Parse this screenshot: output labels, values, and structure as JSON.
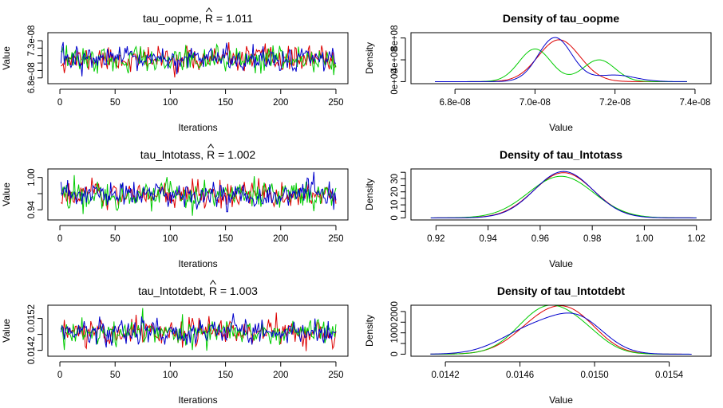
{
  "colors": {
    "red": "#dd0000",
    "green": "#00cc00",
    "blue": "#0000cc"
  },
  "chart_data": [
    {
      "type": "line",
      "title": "tau_oopme, ",
      "rhat_symbol": "R",
      "rhat_value": "1.011",
      "xlabel": "Iterations",
      "ylabel": "Value",
      "xlim": [
        0,
        250
      ],
      "ylim": [
        6.75e-08,
        7.38e-08
      ],
      "xticks": [
        0,
        50,
        100,
        150,
        200,
        250
      ],
      "xticklabels": [
        "0",
        "50",
        "100",
        "150",
        "200",
        "250"
      ],
      "yticks": [
        6.8e-08,
        6.9e-08,
        7e-08,
        7.1e-08,
        7.2e-08,
        7.3e-08
      ],
      "yticklabels": [
        "6.8e-08",
        "",
        "",
        "",
        "",
        "7.3e-08"
      ],
      "trace": {
        "center": 7.05e-08,
        "sd": 8e-10,
        "n": 250
      },
      "series": [
        {
          "color": "#dd0000",
          "seed": 11
        },
        {
          "color": "#00cc00",
          "seed": 12
        },
        {
          "color": "#0000cc",
          "seed": 13
        }
      ]
    },
    {
      "type": "line",
      "title": "Density of tau_oopme",
      "xlabel": "Value",
      "ylabel": "Density",
      "xlim": [
        6.72e-08,
        7.41e-08
      ],
      "ylim": [
        0,
        860000000.0
      ],
      "xticks": [
        6.8e-08,
        7e-08,
        7.2e-08,
        7.4e-08
      ],
      "xticklabels": [
        "6.8e-08",
        "7.0e-08",
        "7.2e-08",
        "7.4e-08"
      ],
      "yticks": [
        0,
        400000000.0,
        800000000.0
      ],
      "yticklabels": [
        "0e+00",
        "4e+08",
        "8e+08"
      ],
      "x_range": [
        6.75e-08,
        7.38e-08
      ],
      "series": [
        {
          "color": "#dd0000",
          "components": [
            [
              1,
              7.06e-08,
              5.2e-10
            ]
          ]
        },
        {
          "color": "#00cc00",
          "components": [
            [
              0.6,
              7e-08,
              4e-10
            ],
            [
              0.4,
              7.16e-08,
              4e-10
            ]
          ]
        },
        {
          "color": "#0000cc",
          "components": [
            [
              0.85,
              7.05e-08,
              4.2e-10
            ],
            [
              0.15,
              7.2e-08,
              5e-10
            ]
          ]
        }
      ]
    },
    {
      "type": "line",
      "title": "tau_lntotass, ",
      "rhat_symbol": "R",
      "rhat_value": "1.002",
      "xlabel": "Iterations",
      "ylabel": "Value",
      "xlim": [
        0,
        250
      ],
      "ylim": [
        0.925,
        1.012
      ],
      "xticks": [
        0,
        50,
        100,
        150,
        200,
        250
      ],
      "xticklabels": [
        "0",
        "50",
        "100",
        "150",
        "200",
        "250"
      ],
      "yticks": [
        0.94,
        0.97,
        1.0
      ],
      "yticklabels": [
        "0.94",
        "",
        "1.00"
      ],
      "trace": {
        "center": 0.968,
        "sd": 0.012,
        "n": 250
      },
      "series": [
        {
          "color": "#dd0000",
          "seed": 21
        },
        {
          "color": "#00cc00",
          "seed": 22
        },
        {
          "color": "#0000cc",
          "seed": 23
        }
      ]
    },
    {
      "type": "line",
      "title": "Density of tau_lntotass",
      "xlabel": "Value",
      "ylabel": "Density",
      "xlim": [
        0.915,
        1.021
      ],
      "ylim": [
        0,
        36
      ],
      "xticks": [
        0.92,
        0.94,
        0.96,
        0.98,
        1.0,
        1.02
      ],
      "xticklabels": [
        "0.92",
        "0.94",
        "0.96",
        "0.98",
        "1.00",
        "1.02"
      ],
      "yticks": [
        0,
        5,
        10,
        15,
        20,
        25,
        30,
        35
      ],
      "yticklabels": [
        "0",
        "",
        "10",
        "",
        "20",
        "",
        "30",
        ""
      ],
      "x_range": [
        0.918,
        1.02
      ],
      "series": [
        {
          "color": "#dd0000",
          "components": [
            [
              1,
              0.969,
              0.0115
            ]
          ]
        },
        {
          "color": "#00cc00",
          "components": [
            [
              1,
              0.968,
              0.0125
            ]
          ]
        },
        {
          "color": "#0000cc",
          "components": [
            [
              1,
              0.969,
              0.0112
            ]
          ]
        }
      ]
    },
    {
      "type": "line",
      "title": "tau_lntotdebt, ",
      "rhat_symbol": "R",
      "rhat_value": "1.003",
      "xlabel": "Iterations",
      "ylabel": "Value",
      "xlim": [
        0,
        250
      ],
      "ylim": [
        0.01408,
        0.01555
      ],
      "xticks": [
        0,
        50,
        100,
        150,
        200,
        250
      ],
      "xticklabels": [
        "0",
        "50",
        "100",
        "150",
        "200",
        "250"
      ],
      "yticks": [
        0.0142,
        0.0147,
        0.0152
      ],
      "yticklabels": [
        "0.0142",
        "",
        "0.0152"
      ],
      "trace": {
        "center": 0.01478,
        "sd": 0.00019,
        "n": 250
      },
      "series": [
        {
          "color": "#dd0000",
          "seed": 31
        },
        {
          "color": "#00cc00",
          "seed": 32
        },
        {
          "color": "#0000cc",
          "seed": 33
        }
      ]
    },
    {
      "type": "line",
      "title": "Density of tau_lntotdebt",
      "xlabel": "Value",
      "ylabel": "Density",
      "xlim": [
        0.01408,
        0.01556
      ],
      "ylim": [
        0,
        2200
      ],
      "xticks": [
        0.0142,
        0.0146,
        0.015,
        0.0154
      ],
      "xticklabels": [
        "0.0142",
        "0.0146",
        "0.0150",
        "0.0154"
      ],
      "yticks": [
        0,
        500,
        1000,
        1500,
        2000
      ],
      "yticklabels": [
        "0",
        "",
        "1000",
        "",
        "2000"
      ],
      "x_range": [
        0.01412,
        0.01552
      ],
      "series": [
        {
          "color": "#dd0000",
          "components": [
            [
              0.7,
              0.01475,
              0.00016
            ],
            [
              0.3,
              0.01492,
              0.00013
            ]
          ]
        },
        {
          "color": "#00cc00",
          "components": [
            [
              0.8,
              0.01474,
              0.00015
            ],
            [
              0.2,
              0.01495,
              0.00012
            ]
          ]
        },
        {
          "color": "#0000cc",
          "components": [
            [
              0.5,
              0.01467,
              0.00017
            ],
            [
              0.5,
              0.01492,
              0.00014
            ]
          ]
        }
      ]
    }
  ]
}
